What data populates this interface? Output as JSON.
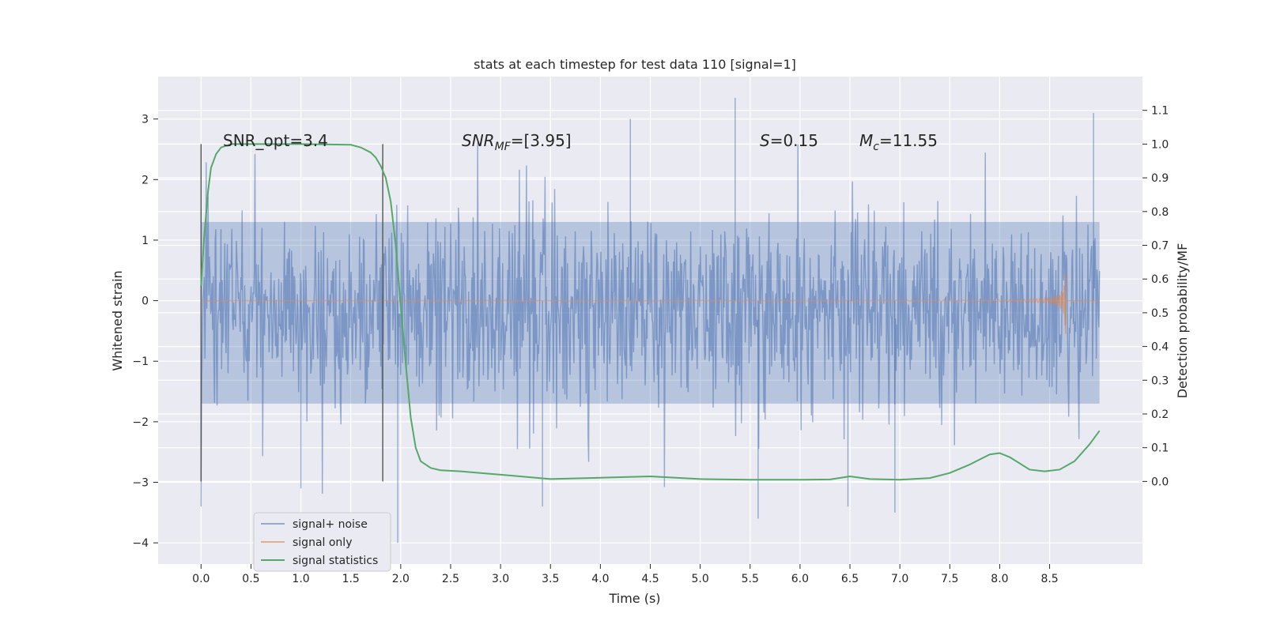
{
  "chart_data": {
    "type": "line",
    "title": "stats at each timestep for test data 110 [signal=1]",
    "xlabel": "Time (s)",
    "ylabel": "Whitened strain",
    "y2label": "Detection probability/MF",
    "xlim": [
      -0.43,
      9.43
    ],
    "ylim": [
      -4.35,
      3.7
    ],
    "y2lim": [
      -0.245,
      1.2
    ],
    "x_ticks": [
      0.0,
      0.5,
      1.0,
      1.5,
      2.0,
      2.5,
      3.0,
      3.5,
      4.0,
      4.5,
      5.0,
      5.5,
      6.0,
      6.5,
      7.0,
      7.5,
      8.0,
      8.5
    ],
    "x_tick_labels": [
      "0.0",
      "0.5",
      "1.0",
      "1.5",
      "2.0",
      "2.5",
      "3.0",
      "3.5",
      "4.0",
      "4.5",
      "5.0",
      "5.5",
      "6.0",
      "6.5",
      "7.0",
      "7.5",
      "8.0",
      "8.5"
    ],
    "y_ticks": [
      -4,
      -3,
      -2,
      -1,
      0,
      1,
      2,
      3
    ],
    "y_tick_labels": [
      "−4",
      "−3",
      "−2",
      "−1",
      "0",
      "1",
      "2",
      "3"
    ],
    "y2_ticks": [
      0.0,
      0.1,
      0.2,
      0.3,
      0.4,
      0.5,
      0.6,
      0.7,
      0.8,
      0.9,
      1.0,
      1.1
    ],
    "y2_tick_labels": [
      "0.0",
      "0.1",
      "0.2",
      "0.3",
      "0.4",
      "0.5",
      "0.6",
      "0.7",
      "0.8",
      "0.9",
      "1.0",
      "1.1"
    ],
    "grid": true,
    "legend_position": "lower-left",
    "series": [
      {
        "name": "signal+ noise",
        "color": "#4c72b0",
        "axis": "left",
        "x_range": [
          0.0,
          9.0
        ],
        "y_typical_range": [
          -1.7,
          1.3
        ],
        "y_extremes": [
          -4.0,
          3.35
        ]
      },
      {
        "name": "signal only",
        "color": "#dd8452",
        "axis": "left",
        "x_range": [
          0.0,
          8.66
        ],
        "y_peak": [
          -0.55,
          0.45
        ]
      },
      {
        "name": "signal statistics",
        "color": "#55a868",
        "axis": "right",
        "x": [
          0.0,
          0.03,
          0.07,
          0.1,
          0.15,
          0.2,
          0.3,
          0.5,
          1.0,
          1.5,
          1.6,
          1.7,
          1.75,
          1.8,
          1.85,
          1.9,
          1.95,
          2.0,
          2.05,
          2.1,
          2.15,
          2.2,
          2.3,
          2.4,
          2.6,
          3.0,
          3.5,
          4.0,
          4.5,
          5.0,
          5.5,
          6.0,
          6.3,
          6.5,
          6.7,
          7.0,
          7.3,
          7.5,
          7.7,
          7.9,
          8.0,
          8.1,
          8.3,
          8.45,
          8.6,
          8.75,
          8.9,
          9.0
        ],
        "y": [
          0.58,
          0.72,
          0.86,
          0.93,
          0.97,
          0.99,
          1.0,
          1.0,
          1.0,
          0.998,
          0.99,
          0.975,
          0.96,
          0.935,
          0.9,
          0.83,
          0.7,
          0.52,
          0.35,
          0.19,
          0.1,
          0.06,
          0.04,
          0.033,
          0.03,
          0.02,
          0.007,
          0.011,
          0.015,
          0.007,
          0.005,
          0.005,
          0.006,
          0.015,
          0.007,
          0.005,
          0.01,
          0.025,
          0.05,
          0.08,
          0.084,
          0.072,
          0.035,
          0.03,
          0.035,
          0.06,
          0.11,
          0.15
        ]
      }
    ],
    "vlines": [
      {
        "x": 0.0,
        "color": "#555555"
      },
      {
        "x": 1.82,
        "color": "#555555"
      }
    ],
    "annotations": [
      {
        "id": "snr-opt",
        "text": "SNR_opt=3.4"
      },
      {
        "id": "snr-mf",
        "base": "SNR",
        "sub": "MF",
        "rest": "=[3.95]"
      },
      {
        "id": "s-stat",
        "base": "S",
        "rest": "=0.15"
      },
      {
        "id": "mc",
        "base": "M",
        "sub": "c",
        "rest": "=11.55"
      }
    ]
  }
}
